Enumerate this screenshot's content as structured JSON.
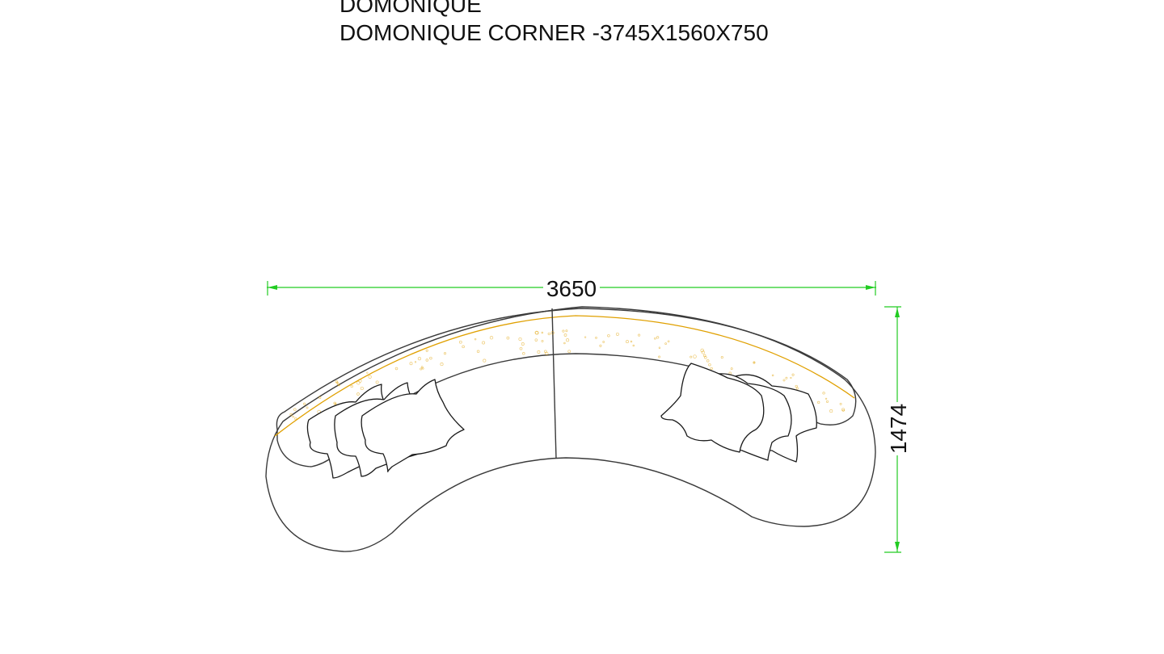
{
  "title": {
    "line1": "DOMONIQUE",
    "line2": "DOMONIQUE CORNER -3745X1560X750"
  },
  "dimensions": {
    "width_label": "3650",
    "depth_label": "1474"
  },
  "colors": {
    "dimension_line": "#22cc22",
    "outline": "#3a3a3a",
    "fabric_accent": "#e0a000",
    "text": "#111111"
  }
}
